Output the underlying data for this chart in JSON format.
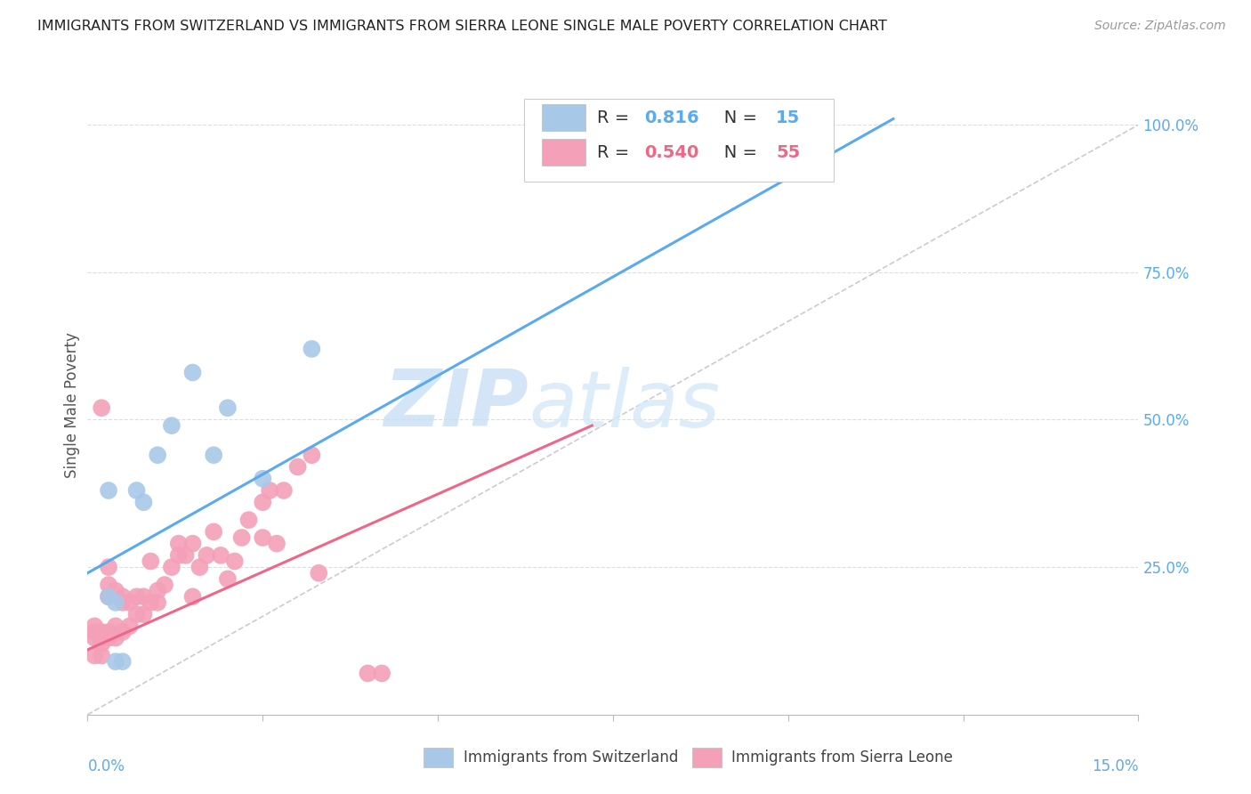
{
  "title": "IMMIGRANTS FROM SWITZERLAND VS IMMIGRANTS FROM SIERRA LEONE SINGLE MALE POVERTY CORRELATION CHART",
  "source": "Source: ZipAtlas.com",
  "ylabel": "Single Male Poverty",
  "xlim": [
    0.0,
    0.15
  ],
  "ylim": [
    0.0,
    1.05
  ],
  "swiss_R": "0.816",
  "swiss_N": "15",
  "leone_R": "0.540",
  "leone_N": "55",
  "swiss_color": "#a8c8e8",
  "leone_color": "#f4a0b8",
  "swiss_line_color": "#5aaaee",
  "leone_line_color": "#ee6688",
  "diagonal_color": "#cccccc",
  "swiss_points_x": [
    0.003,
    0.003,
    0.004,
    0.004,
    0.005,
    0.007,
    0.008,
    0.01,
    0.012,
    0.015,
    0.018,
    0.02,
    0.025,
    0.032,
    0.09
  ],
  "swiss_points_y": [
    0.38,
    0.2,
    0.19,
    0.09,
    0.09,
    0.38,
    0.36,
    0.44,
    0.49,
    0.58,
    0.44,
    0.52,
    0.4,
    0.62,
    1.01
  ],
  "leone_points_x": [
    0.001,
    0.001,
    0.001,
    0.001,
    0.002,
    0.002,
    0.002,
    0.002,
    0.002,
    0.003,
    0.003,
    0.003,
    0.003,
    0.003,
    0.004,
    0.004,
    0.004,
    0.005,
    0.005,
    0.005,
    0.006,
    0.006,
    0.007,
    0.007,
    0.008,
    0.008,
    0.009,
    0.009,
    0.01,
    0.01,
    0.011,
    0.012,
    0.013,
    0.013,
    0.014,
    0.015,
    0.015,
    0.016,
    0.017,
    0.018,
    0.019,
    0.02,
    0.021,
    0.022,
    0.023,
    0.025,
    0.025,
    0.026,
    0.027,
    0.028,
    0.03,
    0.032,
    0.033,
    0.04,
    0.042
  ],
  "leone_points_y": [
    0.15,
    0.14,
    0.13,
    0.1,
    0.14,
    0.12,
    0.13,
    0.1,
    0.52,
    0.14,
    0.13,
    0.2,
    0.22,
    0.25,
    0.15,
    0.13,
    0.21,
    0.14,
    0.19,
    0.2,
    0.15,
    0.19,
    0.2,
    0.17,
    0.2,
    0.17,
    0.19,
    0.26,
    0.21,
    0.19,
    0.22,
    0.25,
    0.27,
    0.29,
    0.27,
    0.29,
    0.2,
    0.25,
    0.27,
    0.31,
    0.27,
    0.23,
    0.26,
    0.3,
    0.33,
    0.36,
    0.3,
    0.38,
    0.29,
    0.38,
    0.42,
    0.44,
    0.24,
    0.07,
    0.07
  ],
  "swiss_line_x": [
    0.0,
    0.115
  ],
  "swiss_line_y": [
    0.24,
    1.01
  ],
  "leone_line_x": [
    0.0,
    0.072
  ],
  "leone_line_y": [
    0.11,
    0.49
  ],
  "diag_line_x": [
    0.0,
    0.15
  ],
  "diag_line_y": [
    0.0,
    1.0
  ],
  "watermark_zip": "ZIP",
  "watermark_atlas": "atlas",
  "background_color": "#ffffff",
  "grid_color": "#dddddd",
  "ytick_values": [
    0.25,
    0.5,
    0.75,
    1.0
  ],
  "ytick_labels": [
    "25.0%",
    "50.0%",
    "75.0%",
    "100.0%"
  ],
  "xtick_values": [
    0.0,
    0.025,
    0.05,
    0.075,
    0.1,
    0.125,
    0.15
  ],
  "legend_swiss_label": "Immigrants from Switzerland",
  "legend_leone_label": "Immigrants from Sierra Leone"
}
